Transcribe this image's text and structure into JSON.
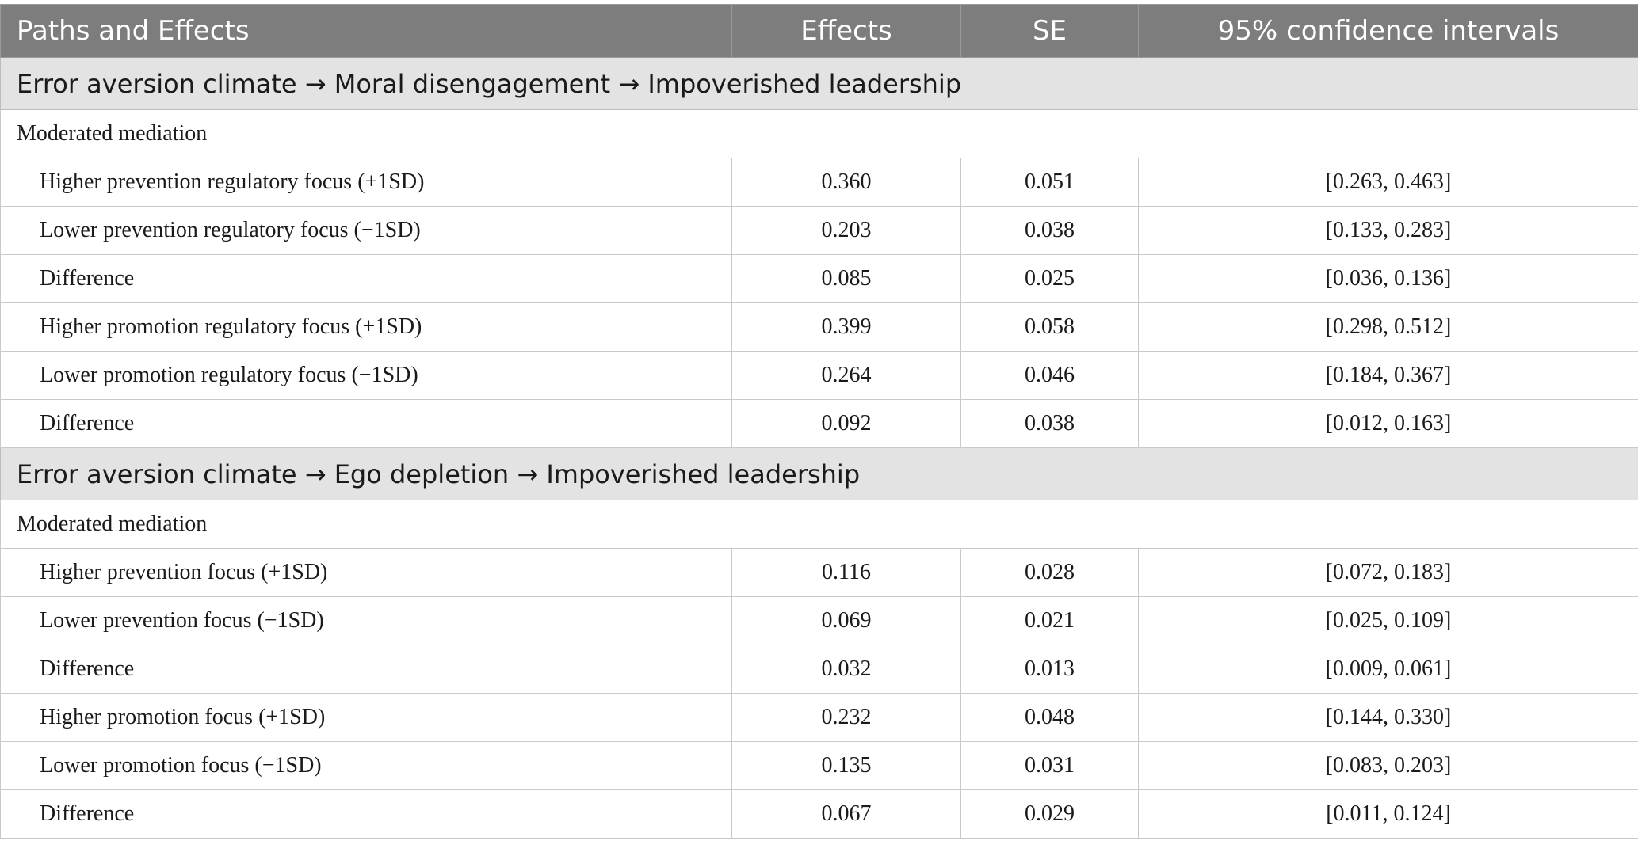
{
  "header": {
    "paths": "Paths and Effects",
    "effects": "Effects",
    "se": "SE",
    "ci": "95% confidence intervals"
  },
  "sections": [
    {
      "title": "Error aversion climate → Moral disengagement → Impoverished leadership",
      "subheading": "Moderated mediation",
      "rows": [
        {
          "label": "Higher prevention regulatory focus (+1SD)",
          "effect": "0.360",
          "se": "0.051",
          "ci": "[0.263, 0.463]"
        },
        {
          "label": "Lower prevention regulatory focus (−1SD)",
          "effect": "0.203",
          "se": "0.038",
          "ci": "[0.133, 0.283]"
        },
        {
          "label": "Difference",
          "effect": "0.085",
          "se": "0.025",
          "ci": "[0.036, 0.136]"
        },
        {
          "label": "Higher promotion regulatory focus (+1SD)",
          "effect": "0.399",
          "se": "0.058",
          "ci": "[0.298, 0.512]"
        },
        {
          "label": "Lower promotion regulatory focus (−1SD)",
          "effect": "0.264",
          "se": "0.046",
          "ci": "[0.184, 0.367]"
        },
        {
          "label": "Difference",
          "effect": "0.092",
          "se": "0.038",
          "ci": "[0.012, 0.163]"
        }
      ]
    },
    {
      "title": "Error aversion climate → Ego depletion → Impoverished leadership",
      "subheading": "Moderated mediation",
      "rows": [
        {
          "label": "Higher prevention focus (+1SD)",
          "effect": "0.116",
          "se": "0.028",
          "ci": "[0.072, 0.183]"
        },
        {
          "label": "Lower prevention focus (−1SD)",
          "effect": "0.069",
          "se": "0.021",
          "ci": "[0.025, 0.109]"
        },
        {
          "label": "Difference",
          "effect": "0.032",
          "se": "0.013",
          "ci": "[0.009, 0.061]"
        },
        {
          "label": "Higher promotion focus (+1SD)",
          "effect": "0.232",
          "se": "0.048",
          "ci": "[0.144, 0.330]"
        },
        {
          "label": "Lower promotion focus (−1SD)",
          "effect": "0.135",
          "se": "0.031",
          "ci": "[0.083, 0.203]"
        },
        {
          "label": "Difference",
          "effect": "0.067",
          "se": "0.029",
          "ci": "[0.011, 0.124]"
        }
      ]
    }
  ]
}
